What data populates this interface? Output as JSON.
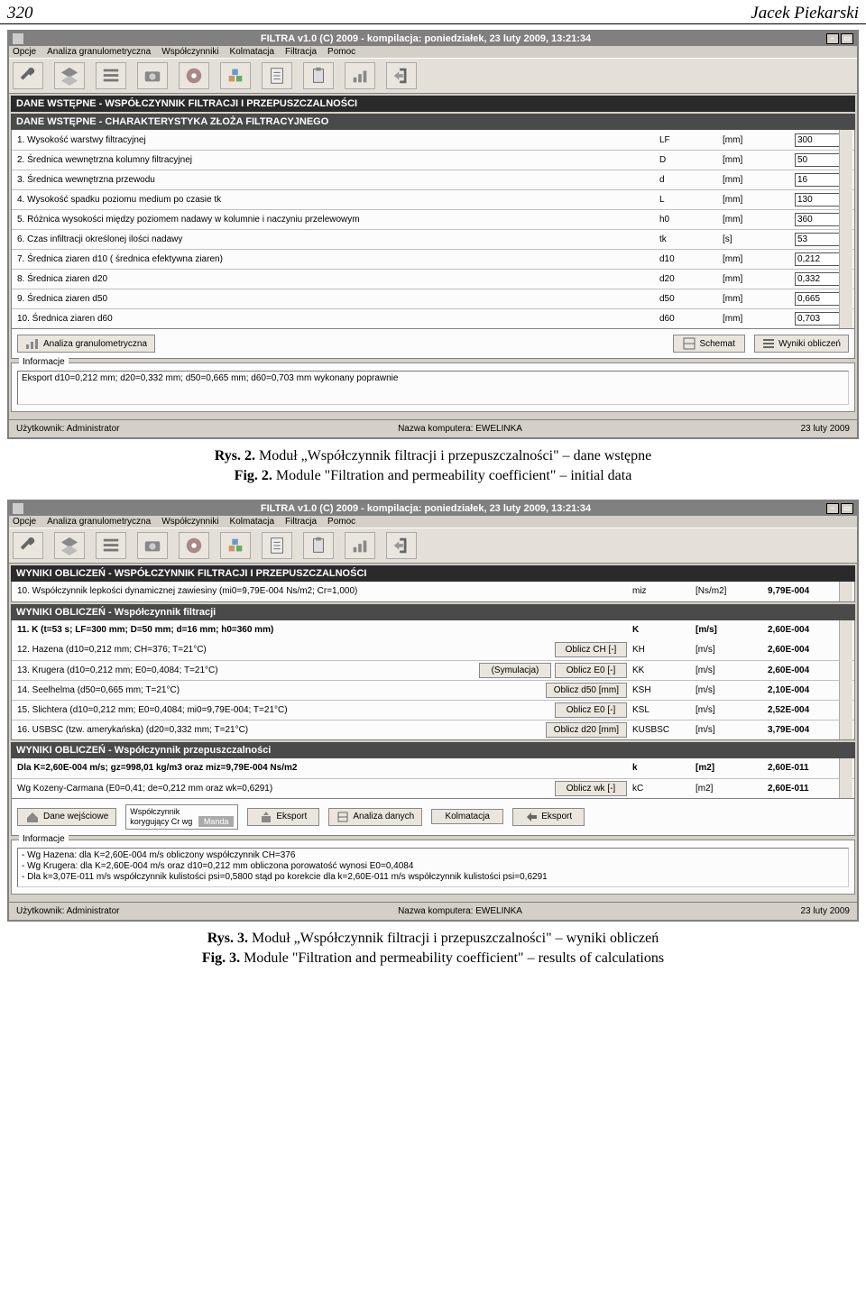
{
  "page": {
    "number": "320",
    "author": "Jacek Piekarski"
  },
  "app": {
    "title": "FILTRA v1.0 (C) 2009 - kompilacja: poniedziałek, 23 luty 2009, 13:21:34",
    "menus": [
      "Opcje",
      "Analiza granulometryczna",
      "Współczynniki",
      "Kolmatacja",
      "Filtracja",
      "Pomoc"
    ],
    "status": {
      "user": "Użytkownik: Administrator",
      "host": "Nazwa komputera: EWELINKA",
      "date": "23 luty 2009"
    }
  },
  "win1": {
    "header1": "DANE WSTĘPNE - WSPÓŁCZYNNIK FILTRACJI I PRZEPUSZCZALNOŚCI",
    "header2": "DANE WSTĘPNE - CHARAKTERYSTYKA ZŁOŻA FILTRACYJNEGO",
    "rows": [
      {
        "desc": "1. Wysokość warstwy filtracyjnej",
        "sym": "LF",
        "unit": "[mm]",
        "val": "300"
      },
      {
        "desc": "2. Średnica wewnętrzna kolumny filtracyjnej",
        "sym": "D",
        "unit": "[mm]",
        "val": "50"
      },
      {
        "desc": "3. Średnica wewnętrzna przewodu",
        "sym": "d",
        "unit": "[mm]",
        "val": "16"
      },
      {
        "desc": "4. Wysokość spadku poziomu medium po czasie tk",
        "sym": "L",
        "unit": "[mm]",
        "val": "130"
      },
      {
        "desc": "5. Różnica wysokości między poziomem nadawy w kolumnie i naczyniu przelewowym",
        "sym": "h0",
        "unit": "[mm]",
        "val": "360"
      },
      {
        "desc": "6. Czas infiltracji określonej ilości nadawy",
        "sym": "tk",
        "unit": "[s]",
        "val": "53"
      },
      {
        "desc": "7. Średnica ziaren d10 ( średnica efektywna ziaren)",
        "sym": "d10",
        "unit": "[mm]",
        "val": "0,212"
      },
      {
        "desc": "8. Średnica ziaren d20",
        "sym": "d20",
        "unit": "[mm]",
        "val": "0,332"
      },
      {
        "desc": "9. Średnica ziaren d50",
        "sym": "d50",
        "unit": "[mm]",
        "val": "0,665"
      },
      {
        "desc": "10. Średnica ziaren d60",
        "sym": "d60",
        "unit": "[mm]",
        "val": "0,703"
      }
    ],
    "btns": {
      "analiza": "Analiza granulometryczna",
      "schemat": "Schemat",
      "wyniki": "Wyniki obliczeń"
    },
    "infoLabel": "Informacje",
    "info": "Eksport d10=0,212 mm; d20=0,332 mm; d50=0,665 mm; d60=0,703 mm wykonany poprawnie"
  },
  "caption1": {
    "l1": "Rys. 2. Moduł „Współczynnik filtracji i przepuszczalności\" – dane wstępne",
    "l2": "Fig. 2. Module \"Filtration and permeability coefficient\" – initial data"
  },
  "win2": {
    "header1": "WYNIKI OBLICZEŃ - WSPÓŁCZYNNIK FILTRACJI I PRZEPUSZCZALNOŚCI",
    "rowTop": {
      "desc": "10. Współczynnik lepkości dynamicznej zawiesiny (mi0=9,79E-004 Ns/m2; Cr=1,000)",
      "sym": "miz",
      "unit": "[Ns/m2]",
      "val": "9,79E-004"
    },
    "header2": "WYNIKI OBLICZEŃ - Współczynnik filtracji",
    "row11": {
      "desc": "11. K (t=53 s; LF=300 mm; D=50 mm; d=16 mm; h0=360 mm)",
      "sym": "K",
      "unit": "[m/s]",
      "val": "2,60E-004"
    },
    "rows": [
      {
        "desc": "12. Hazena (d10=0,212 mm; CH=376; T=21°C)",
        "btns": [
          "Oblicz CH [-]"
        ],
        "sym": "KH",
        "unit": "[m/s]",
        "val": "2,60E-004"
      },
      {
        "desc": "13. Krugera (d10=0,212 mm; E0=0,4084; T=21°C)",
        "btns": [
          "(Symulacja)",
          "Oblicz E0 [-]"
        ],
        "sym": "KK",
        "unit": "[m/s]",
        "val": "2,60E-004"
      },
      {
        "desc": "14. Seelhelma (d50=0,665 mm; T=21°C)",
        "btns": [
          "Oblicz d50 [mm]"
        ],
        "sym": "KSH",
        "unit": "[m/s]",
        "val": "2,10E-004"
      },
      {
        "desc": "15. Slichtera (d10=0,212 mm; E0=0,4084; mi0=9,79E-004; T=21°C)",
        "btns": [
          "Oblicz E0 [-]"
        ],
        "sym": "KSL",
        "unit": "[m/s]",
        "val": "2,52E-004"
      },
      {
        "desc": "16. USBSC (tzw. amerykańska) (d20=0,332 mm; T=21°C)",
        "btns": [
          "Oblicz d20 [mm]"
        ],
        "sym": "KUSBSC",
        "unit": "[m/s]",
        "val": "3,79E-004"
      }
    ],
    "header3": "WYNIKI OBLICZEŃ - Współczynnik przepuszczalności",
    "row_k": {
      "desc": "Dla K=2,60E-004 m/s; gz=998,01 kg/m3 oraz miz=9,79E-004 Ns/m2",
      "sym": "k",
      "unit": "[m2]",
      "val": "2,60E-011"
    },
    "row_kc": {
      "desc": "Wg Kozeny-Carmana (E0=0,41; de=0,212 mm oraz wk=0,6291)",
      "btn": "Oblicz wk [-]",
      "sym": "kC",
      "unit": "[m2]",
      "val": "2,60E-011"
    },
    "bottomBtns": {
      "dane": "Dane wejściowe",
      "korLabel": "Współczynnik\nkorygujący Cr wg",
      "korSel": "Manda",
      "eksport": "Eksport",
      "analiza": "Analiza danych",
      "kolmatacja": "Kolmatacja",
      "eksport2": "Eksport"
    },
    "infoLabel": "Informacje",
    "info": "- Wg Hazena: dla K=2,60E-004 m/s obliczony współczynnik CH=376\n- Wg Krugera: dla K=2,60E-004 m/s oraz d10=0,212 mm obliczona porowatość wynosi E0=0,4084\n- Dla k=3,07E-011 m/s współczynnik kulistości psi=0,5800 stąd po korekcie dla k=2,60E-011 m/s współczynnik kulistości psi=0,6291"
  },
  "caption2": {
    "l1": "Rys. 3. Moduł „Współczynnik filtracji i przepuszczalności\" – wyniki obliczeń",
    "l2": "Fig. 3. Module \"Filtration and permeability coefficient\" – results of calculations"
  }
}
